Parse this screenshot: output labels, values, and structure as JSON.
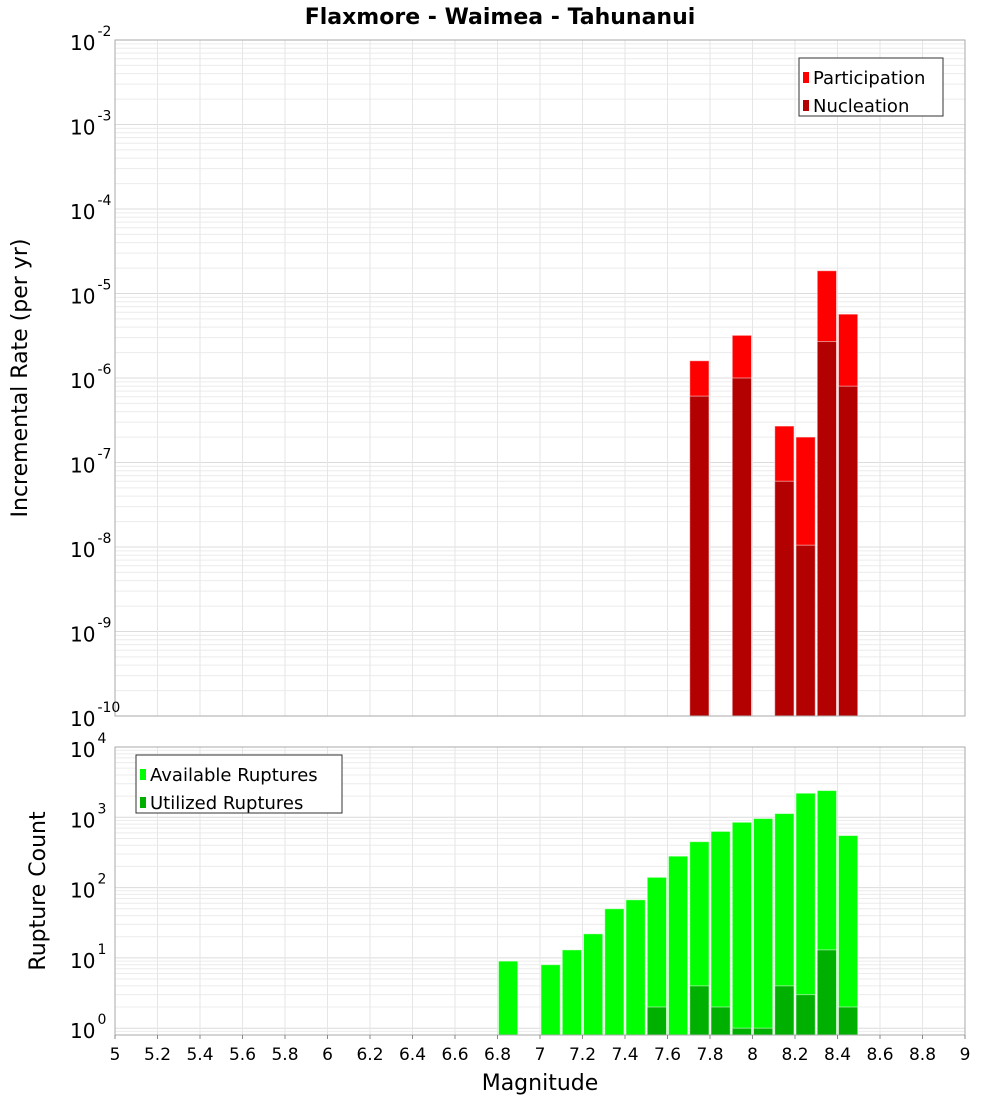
{
  "chart_data": [
    {
      "type": "bar",
      "title": "Flaxmore - Waimea - Tahunanui",
      "xlabel": "",
      "ylabel": "Incremental Rate (per yr)",
      "yscale": "log",
      "ylim": [
        1e-10,
        0.01
      ],
      "xlim": [
        5,
        9
      ],
      "bin_width": 0.1,
      "legend_position": "top-right",
      "grid": true,
      "x": [
        7.75,
        7.95,
        8.15,
        8.25,
        8.35,
        8.45
      ],
      "series": [
        {
          "name": "Participation",
          "color": "#ff0000",
          "values": [
            1.6e-06,
            3.2e-06,
            2.7e-07,
            2e-07,
            1.86e-05,
            5.7e-06
          ]
        },
        {
          "name": "Nucleation",
          "color": "#b30000",
          "values": [
            6.1e-07,
            1e-06,
            6e-08,
            1.05e-08,
            2.7e-06,
            8e-07
          ]
        }
      ],
      "ytick_exponents": [
        "-2",
        "-3",
        "-4",
        "-5",
        "-6",
        "-7",
        "-8",
        "-9",
        "-10"
      ]
    },
    {
      "type": "bar",
      "title": "",
      "xlabel": "Magnitude",
      "ylabel": "Rupture Count",
      "yscale": "log",
      "ylim": [
        0.8,
        10000
      ],
      "xlim": [
        5,
        9
      ],
      "bin_width": 0.1,
      "legend_position": "top-left",
      "grid": true,
      "x": [
        6.85,
        7.05,
        7.15,
        7.25,
        7.35,
        7.45,
        7.55,
        7.65,
        7.75,
        7.85,
        7.95,
        8.05,
        8.15,
        8.25,
        8.35,
        8.45
      ],
      "series": [
        {
          "name": "Available Ruptures",
          "color": "#00ff00",
          "values": [
            9,
            8,
            13,
            22,
            50,
            67,
            140,
            280,
            450,
            630,
            850,
            960,
            1130,
            2200,
            2400,
            550
          ]
        },
        {
          "name": "Utilized Ruptures",
          "color": "#00b000",
          "values": [
            0,
            0,
            0,
            0,
            0,
            0,
            2,
            0,
            4,
            2,
            1,
            1,
            4,
            3,
            13,
            2
          ]
        }
      ],
      "ytick_exponents": [
        "4",
        "3",
        "2",
        "1",
        "0"
      ],
      "xtick_labels": [
        "5",
        "5.2",
        "5.4",
        "5.6",
        "5.8",
        "6",
        "6.2",
        "6.4",
        "6.6",
        "6.8",
        "7",
        "7.2",
        "7.4",
        "7.6",
        "7.8",
        "8",
        "8.2",
        "8.4",
        "8.6",
        "8.8",
        "9"
      ]
    }
  ]
}
